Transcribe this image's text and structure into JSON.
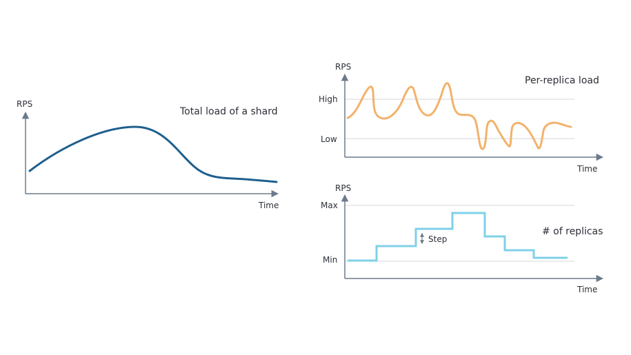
{
  "colors": {
    "axis": "#6b7a8c",
    "grid": "#d4d7db",
    "text": "#2b2f36",
    "total_load": "#1e5f8e",
    "per_replica": "#f2b26b",
    "replicas": "#7fd0e8"
  },
  "left_chart": {
    "y_axis_label": "RPS",
    "x_axis_label": "Time",
    "title": "Total load of a shard"
  },
  "top_right_chart": {
    "y_axis_label": "RPS",
    "x_axis_label": "Time",
    "title": "Per-replica load",
    "ticks": {
      "high": "High",
      "low": "Low"
    }
  },
  "bottom_right_chart": {
    "y_axis_label": "RPS",
    "x_axis_label": "Time",
    "title": "# of replicas",
    "ticks": {
      "max": "Max",
      "min": "Min"
    },
    "step_label": "Step"
  }
}
